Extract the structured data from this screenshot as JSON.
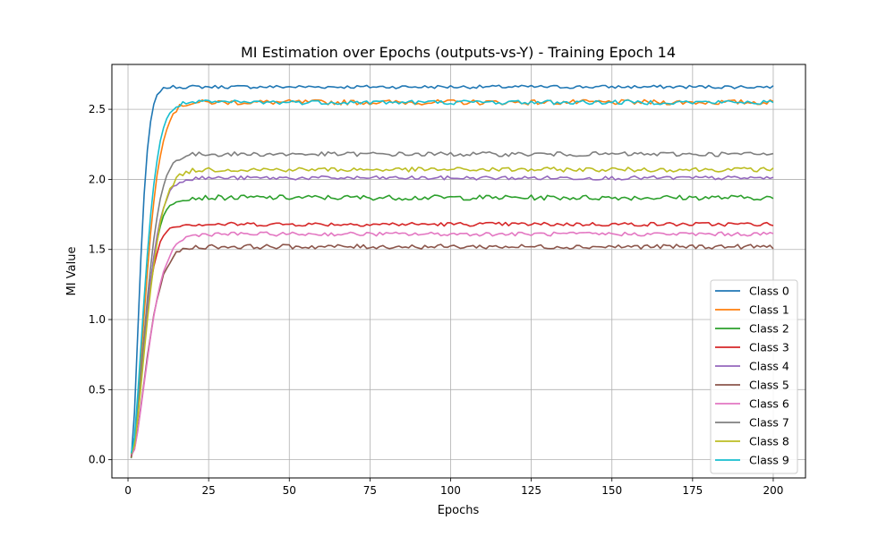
{
  "chart_data": {
    "type": "line",
    "title": "MI Estimation over Epochs (outputs-vs-Y) - Training Epoch 14",
    "xlabel": "Epochs",
    "ylabel": "MI Value",
    "xlim": [
      -5,
      210
    ],
    "ylim": [
      -0.13,
      2.82
    ],
    "xticks": [
      0,
      25,
      50,
      75,
      100,
      125,
      150,
      175,
      200
    ],
    "yticks": [
      0.0,
      0.5,
      1.0,
      1.5,
      2.0,
      2.5
    ],
    "ytick_labels": [
      "0.0",
      "0.5",
      "1.0",
      "1.5",
      "2.0",
      "2.5"
    ],
    "grid": true,
    "legend_position": "lower-right",
    "x_range": [
      1,
      200
    ],
    "series": [
      {
        "name": "Class 0",
        "color": "#1f77b4",
        "plateau": 2.66,
        "tau": 3.5,
        "noise": 0.012
      },
      {
        "name": "Class 1",
        "color": "#ff7f0e",
        "plateau": 2.55,
        "tau": 6.0,
        "noise": 0.018
      },
      {
        "name": "Class 2",
        "color": "#2ca02c",
        "plateau": 1.87,
        "tau": 5.5,
        "noise": 0.018
      },
      {
        "name": "Class 3",
        "color": "#d62728",
        "plateau": 1.68,
        "tau": 5.0,
        "noise": 0.014
      },
      {
        "name": "Class 4",
        "color": "#9467bd",
        "plateau": 2.01,
        "tau": 6.0,
        "noise": 0.014
      },
      {
        "name": "Class 5",
        "color": "#8c564b",
        "plateau": 1.52,
        "tau": 6.5,
        "noise": 0.016
      },
      {
        "name": "Class 6",
        "color": "#e377c2",
        "plateau": 1.61,
        "tau": 7.0,
        "noise": 0.014
      },
      {
        "name": "Class 7",
        "color": "#7f7f7f",
        "plateau": 2.18,
        "tau": 6.0,
        "noise": 0.016
      },
      {
        "name": "Class 8",
        "color": "#bcbd22",
        "plateau": 2.07,
        "tau": 6.5,
        "noise": 0.016
      },
      {
        "name": "Class 9",
        "color": "#17becf",
        "plateau": 2.55,
        "tau": 5.5,
        "noise": 0.016
      }
    ]
  }
}
